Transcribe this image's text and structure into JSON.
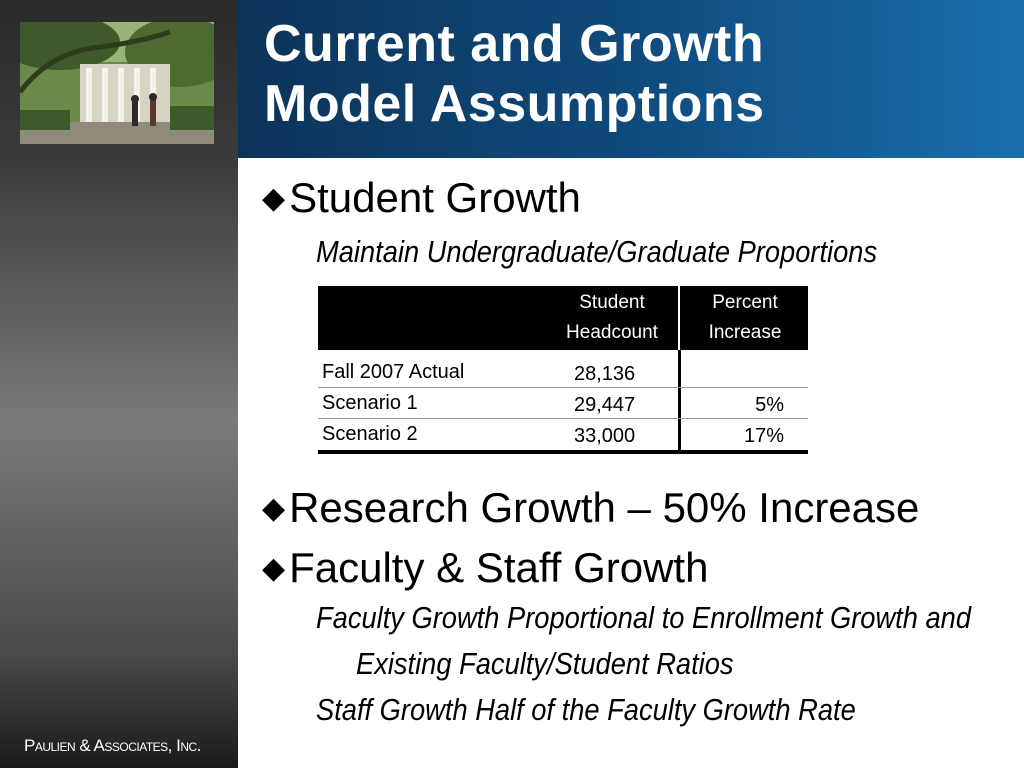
{
  "slide": {
    "title_line1": "Current and Growth",
    "title_line2": "Model Assumptions",
    "company": "Paulien & Associates, Inc."
  },
  "bullets": [
    {
      "text": "Student Growth"
    },
    {
      "text": "Research Growth – 50% Increase"
    },
    {
      "text": "Faculty & Staff Growth"
    }
  ],
  "subtexts": {
    "student_growth": "Maintain Undergraduate/Graduate Proportions",
    "faculty_line1": "Faculty Growth Proportional to Enrollment Growth and",
    "faculty_line2": "Existing Faculty/Student Ratios",
    "staff_line": "Staff Growth Half of the Faculty Growth Rate"
  },
  "table": {
    "headers": {
      "col2_line1": "Student",
      "col2_line2": "Headcount",
      "col3_line1": "Percent",
      "col3_line2": "Increase"
    },
    "rows": [
      {
        "label": "Fall 2007 Actual",
        "headcount": "28,136",
        "increase": ""
      },
      {
        "label": "Scenario 1",
        "headcount": "29,447",
        "increase": "5%"
      },
      {
        "label": "Scenario 2",
        "headcount": "33,000",
        "increase": "17%"
      }
    ]
  },
  "colors": {
    "title_band": "#0f4a7c",
    "table_header": "#000000",
    "title_text": "#ffffff"
  },
  "icons": {
    "bullet": "diamond-bullet-icon",
    "photo": "campus-photo"
  }
}
